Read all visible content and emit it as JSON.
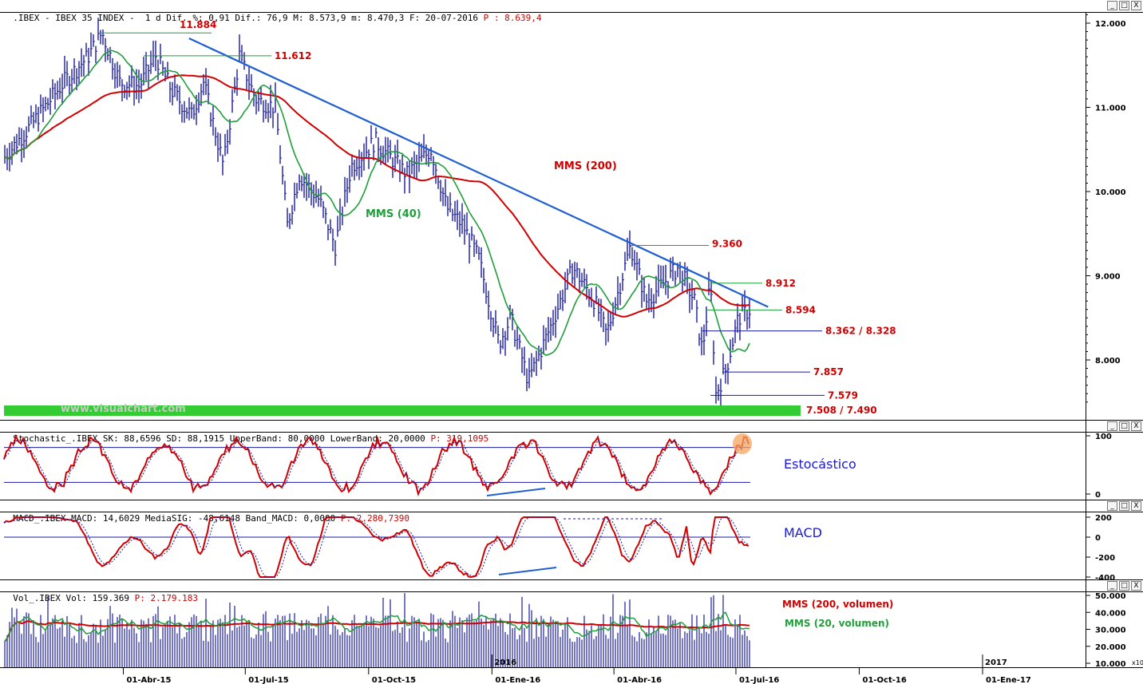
{
  "headers": {
    "price": {
      "prefix": ".IBEX - IBEX 35 INDEX -  1 d Dif. %: 0,91 Dif.: 76,9 M: 8.573,9 m: 8.470,3 F: 20-07-2016",
      "p_text": "P : 8.639,4"
    },
    "stochastic": {
      "prefix": "Stochastic_.IBEX SK: 88,6596 SD: 88,1915 UpperBand: 80,0000 LowerBand: 20,0000",
      "p_text": "P: 319,1095"
    },
    "macd": {
      "prefix": "MACD_.IBEX MACD: 14,6029 MediaSIG: -48,6148 Band_MACD: 0,0000",
      "p_text": "P: 2.280,7390"
    },
    "volume": {
      "prefix": "Vol_.IBEX Vol: 159.369",
      "p_text": "P: 2.179.183"
    }
  },
  "window_buttons": {
    "min": "_",
    "max": "□",
    "close": "X"
  },
  "watermark": "www.visualchart.com",
  "chart_data": [
    {
      "type": "bar",
      "panel": "price",
      "x_axis_labels": [
        "01-Abr-15",
        "01-Jul-15",
        "01-Oct-15",
        "01-Ene-16",
        "01-Abr-16",
        "01-Jul-16",
        "01-Oct-16",
        "01-Ene-17"
      ],
      "year_labels": [
        "2016",
        "2017"
      ],
      "y_ticks": [
        "12.000",
        "11.000",
        "10.000",
        "9.000",
        "8.000"
      ],
      "ylim": [
        7450,
        12150
      ],
      "levels": [
        {
          "value": 11884,
          "label": "11.884"
        },
        {
          "value": 11612,
          "label": "11.612"
        },
        {
          "value": 9360,
          "label": "9.360"
        },
        {
          "value": 8912,
          "label": "8.912"
        },
        {
          "value": 8594,
          "label": "8.594"
        },
        {
          "value": 8345,
          "label": "8.362 / 8.328"
        },
        {
          "value": 7857,
          "label": "7.857"
        },
        {
          "value": 7579,
          "label": "7.579"
        }
      ],
      "support_zone": {
        "label": "7.508 / 7.490",
        "low": 7490,
        "high": 7508,
        "color": "#33cc33"
      },
      "series": [
        {
          "name": "MMS (200)",
          "color": "#d00000"
        },
        {
          "name": "MMS (40)",
          "color": "#1f9e3a"
        },
        {
          "name": "Trendline",
          "color": "#1f5fd0"
        },
        {
          "name": "OHLC",
          "color": "#1a1aa0"
        }
      ],
      "trendline": {
        "from": [
          "2015-05-20",
          11820
        ],
        "to": [
          "2016-07-25",
          8630
        ]
      },
      "grid": false
    },
    {
      "type": "line",
      "panel": "stochastic",
      "title": "Estocástico",
      "y_ticks": [
        "100",
        "0"
      ],
      "bands": [
        80,
        20
      ],
      "ylim": [
        0,
        100
      ],
      "highlight_color": "#f4a460"
    },
    {
      "type": "line",
      "panel": "macd",
      "title": "MACD",
      "y_ticks": [
        "200",
        "0",
        "-200",
        "-400"
      ],
      "ylim": [
        -450,
        220
      ]
    },
    {
      "type": "bar",
      "panel": "volume",
      "y_ticks": [
        "50.000",
        "40.000",
        "30.000",
        "20.000",
        "10.000"
      ],
      "y_unit": "x10",
      "ylim": [
        7000,
        52000
      ],
      "legend": [
        {
          "name": "MMS (200, volumen)",
          "color": "#d00000"
        },
        {
          "name": "MMS (20, volumen)",
          "color": "#1f9e3a"
        }
      ]
    }
  ]
}
